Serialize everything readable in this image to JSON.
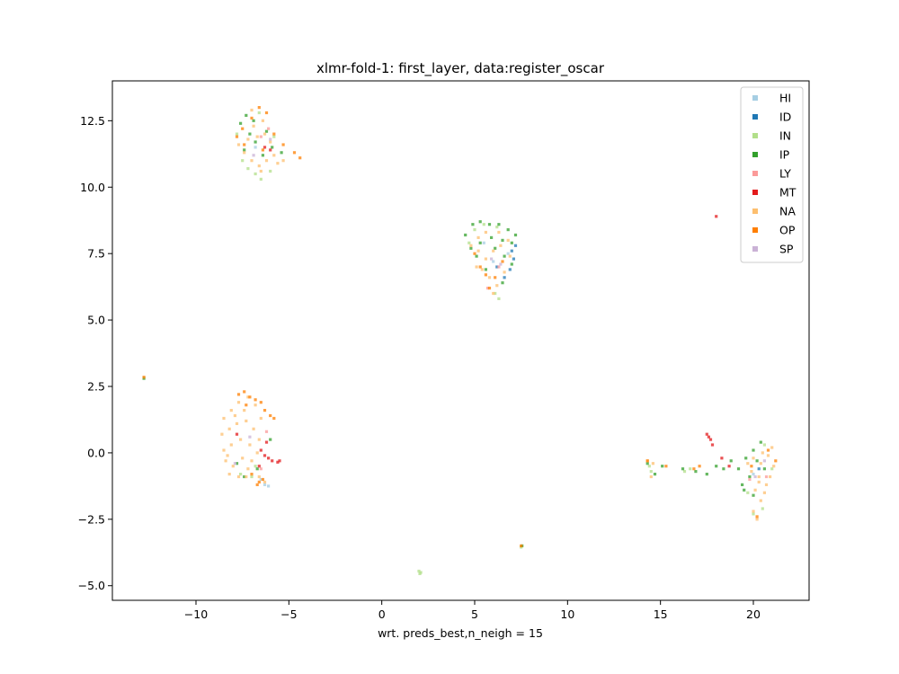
{
  "chart_data": {
    "type": "scatter",
    "title": "xlmr-fold-1: first_layer, data:register_oscar",
    "xlabel": "wrt. preds_best,n_neigh = 15",
    "ylabel": "",
    "xlim": [
      -14.5,
      23.0
    ],
    "ylim": [
      -5.55,
      14.0
    ],
    "xticks": [
      -10,
      -5,
      0,
      5,
      10,
      15,
      20
    ],
    "xtick_labels": [
      "−10",
      "−5",
      "0",
      "5",
      "10",
      "15",
      "20"
    ],
    "yticks": [
      -5.0,
      -2.5,
      0.0,
      2.5,
      5.0,
      7.5,
      10.0,
      12.5
    ],
    "ytick_labels": [
      "−5.0",
      "−2.5",
      "0.0",
      "2.5",
      "5.0",
      "7.5",
      "10.0",
      "12.5"
    ],
    "grid": false,
    "legend_position": "upper right",
    "series": [
      {
        "name": "HI",
        "color": "#a6cee3",
        "points": [
          [
            -6.3,
            -1.2
          ],
          [
            -6.1,
            -1.25
          ],
          [
            -6.5,
            -1.0
          ],
          [
            5.5,
            7.9
          ],
          [
            6.0,
            7.2
          ],
          [
            6.8,
            7.5
          ],
          [
            -6.8,
            11.5
          ],
          [
            20.0,
            -0.8
          ]
        ]
      },
      {
        "name": "ID",
        "color": "#1f78b4",
        "points": [
          [
            7.0,
            7.6
          ],
          [
            7.1,
            7.3
          ],
          [
            6.9,
            6.9
          ],
          [
            7.2,
            7.8
          ],
          [
            6.6,
            6.6
          ],
          [
            6.2,
            7.0
          ],
          [
            20.3,
            -0.6
          ]
        ]
      },
      {
        "name": "IN",
        "color": "#b2df8a",
        "points": [
          [
            -6.8,
            10.5
          ],
          [
            -6.5,
            10.3
          ],
          [
            -7.2,
            10.7
          ],
          [
            -6.0,
            10.6
          ],
          [
            -7.5,
            11.0
          ],
          [
            -5.8,
            11.9
          ],
          [
            -7.8,
            12.0
          ],
          [
            -6.6,
            12.8
          ],
          [
            5.0,
            8.4
          ],
          [
            5.5,
            8.6
          ],
          [
            6.2,
            8.5
          ],
          [
            4.7,
            7.9
          ],
          [
            6.1,
            6.0
          ],
          [
            6.3,
            5.8
          ],
          [
            -7.6,
            -0.8
          ],
          [
            -7.0,
            -0.9
          ],
          [
            -6.8,
            -0.5
          ],
          [
            2.0,
            -4.45
          ],
          [
            2.1,
            -4.5
          ],
          [
            2.05,
            -4.55
          ],
          [
            14.5,
            -0.7
          ],
          [
            14.4,
            -0.5
          ],
          [
            16.3,
            -0.7
          ],
          [
            16.6,
            -0.6
          ],
          [
            19.7,
            -1.5
          ],
          [
            20.0,
            -2.3
          ],
          [
            20.5,
            -2.1
          ],
          [
            20.6,
            0.3
          ],
          [
            21.0,
            -0.6
          ],
          [
            7.5,
            -3.55
          ]
        ]
      },
      {
        "name": "IP",
        "color": "#33a02c",
        "points": [
          [
            -7.6,
            12.4
          ],
          [
            -7.3,
            12.7
          ],
          [
            -6.9,
            12.5
          ],
          [
            -6.2,
            12.1
          ],
          [
            -5.9,
            11.5
          ],
          [
            -7.4,
            11.4
          ],
          [
            -6.4,
            11.2
          ],
          [
            -5.4,
            11.3
          ],
          [
            -6.8,
            11.7
          ],
          [
            -7.1,
            12.0
          ],
          [
            4.5,
            8.2
          ],
          [
            4.9,
            8.6
          ],
          [
            5.3,
            8.7
          ],
          [
            5.8,
            8.6
          ],
          [
            6.3,
            8.6
          ],
          [
            6.8,
            8.4
          ],
          [
            7.2,
            8.2
          ],
          [
            4.8,
            7.7
          ],
          [
            5.3,
            7.9
          ],
          [
            5.9,
            8.1
          ],
          [
            6.5,
            8.0
          ],
          [
            7.0,
            7.9
          ],
          [
            5.1,
            7.4
          ],
          [
            6.1,
            7.7
          ],
          [
            6.6,
            7.4
          ],
          [
            5.6,
            6.9
          ],
          [
            6.5,
            6.4
          ],
          [
            7.0,
            7.1
          ],
          [
            -7.8,
            -0.4
          ],
          [
            -6.7,
            -0.6
          ],
          [
            -6.0,
            0.5
          ],
          [
            -7.4,
            -0.9
          ],
          [
            14.3,
            -0.4
          ],
          [
            14.7,
            -0.8
          ],
          [
            15.1,
            -0.5
          ],
          [
            16.2,
            -0.6
          ],
          [
            16.9,
            -0.7
          ],
          [
            17.5,
            -0.8
          ],
          [
            18.0,
            -0.5
          ],
          [
            18.4,
            -0.6
          ],
          [
            18.8,
            -0.3
          ],
          [
            19.2,
            -0.6
          ],
          [
            19.4,
            -1.2
          ],
          [
            19.6,
            -0.2
          ],
          [
            19.8,
            -0.9
          ],
          [
            20.0,
            0.1
          ],
          [
            20.2,
            -0.3
          ],
          [
            20.4,
            0.4
          ],
          [
            19.5,
            -1.4
          ],
          [
            20.0,
            -1.6
          ],
          [
            20.6,
            -0.6
          ],
          [
            7.55,
            -3.5
          ],
          [
            -12.8,
            2.8
          ]
        ]
      },
      {
        "name": "LY",
        "color": "#fb9a99",
        "points": [
          [
            -6.1,
            12.2
          ],
          [
            -6.5,
            11.9
          ],
          [
            5.7,
            6.2
          ],
          [
            6.3,
            7.0
          ],
          [
            -6.2,
            0.8
          ],
          [
            -6.5,
            -0.6
          ],
          [
            19.8,
            -1.0
          ],
          [
            20.7,
            -0.9
          ]
        ]
      },
      {
        "name": "MT",
        "color": "#e31a1c",
        "points": [
          [
            -6.3,
            11.5
          ],
          [
            -6.0,
            11.4
          ],
          [
            -6.5,
            0.1
          ],
          [
            -6.2,
            0.4
          ],
          [
            -6.1,
            -0.2
          ],
          [
            -5.9,
            -0.3
          ],
          [
            -5.6,
            -0.35
          ],
          [
            -5.5,
            -0.3
          ],
          [
            -6.3,
            -0.1
          ],
          [
            -6.6,
            -0.5
          ],
          [
            -7.8,
            0.7
          ],
          [
            17.5,
            0.7
          ],
          [
            17.7,
            0.5
          ],
          [
            17.6,
            0.6
          ],
          [
            17.8,
            0.3
          ],
          [
            18.3,
            -0.2
          ],
          [
            18.7,
            -0.5
          ],
          [
            18.0,
            8.9
          ]
        ]
      },
      {
        "name": "NA",
        "color": "#fdbf6f",
        "points": [
          [
            -7.7,
            11.6
          ],
          [
            -7.4,
            11.3
          ],
          [
            -7.0,
            11.0
          ],
          [
            -6.6,
            10.8
          ],
          [
            -6.2,
            11.0
          ],
          [
            -5.8,
            11.2
          ],
          [
            -5.3,
            11.0
          ],
          [
            -6.9,
            12.3
          ],
          [
            -6.4,
            12.5
          ],
          [
            -6.7,
            11.9
          ],
          [
            -7.2,
            11.8
          ],
          [
            -6.0,
            11.7
          ],
          [
            -7.0,
            12.9
          ],
          [
            -6.5,
            10.6
          ],
          [
            -5.6,
            10.9
          ],
          [
            -6.3,
            12.0
          ],
          [
            4.8,
            7.8
          ],
          [
            5.2,
            7.6
          ],
          [
            5.6,
            7.3
          ],
          [
            6.0,
            7.6
          ],
          [
            6.4,
            7.8
          ],
          [
            6.8,
            8.0
          ],
          [
            5.4,
            6.9
          ],
          [
            5.8,
            6.6
          ],
          [
            6.2,
            6.3
          ],
          [
            6.6,
            6.8
          ],
          [
            6.0,
            6.0
          ],
          [
            5.2,
            8.1
          ],
          [
            5.6,
            8.3
          ],
          [
            6.3,
            8.3
          ],
          [
            5.1,
            7.0
          ],
          [
            6.9,
            7.4
          ],
          [
            -8.5,
            1.3
          ],
          [
            -8.1,
            1.6
          ],
          [
            -7.7,
            1.9
          ],
          [
            -7.2,
            2.1
          ],
          [
            -6.8,
            1.8
          ],
          [
            -6.5,
            1.3
          ],
          [
            -8.6,
            0.7
          ],
          [
            -8.2,
            0.9
          ],
          [
            -7.8,
            1.1
          ],
          [
            -7.3,
            1.2
          ],
          [
            -6.9,
            0.9
          ],
          [
            -6.6,
            0.5
          ],
          [
            -8.5,
            0.1
          ],
          [
            -8.1,
            0.3
          ],
          [
            -7.6,
            0.5
          ],
          [
            -7.1,
            0.3
          ],
          [
            -6.7,
            0.0
          ],
          [
            -8.4,
            -0.3
          ],
          [
            -8.0,
            -0.5
          ],
          [
            -7.5,
            -0.2
          ],
          [
            -7.0,
            -0.3
          ],
          [
            -8.2,
            -0.8
          ],
          [
            -7.7,
            -0.9
          ],
          [
            -7.2,
            -0.6
          ],
          [
            -6.6,
            -0.9
          ],
          [
            -6.3,
            -1.1
          ],
          [
            -7.9,
            1.4
          ],
          [
            -7.4,
            1.6
          ],
          [
            -8.3,
            -0.1
          ],
          [
            -7.3,
            -0.9
          ],
          [
            14.3,
            -0.3
          ],
          [
            14.5,
            -0.9
          ],
          [
            14.6,
            -0.4
          ],
          [
            20.0,
            -0.2
          ],
          [
            20.4,
            -0.4
          ],
          [
            20.8,
            -0.1
          ],
          [
            21.0,
            0.2
          ],
          [
            20.3,
            -0.9
          ],
          [
            20.7,
            -1.2
          ],
          [
            20.1,
            -1.4
          ],
          [
            20.4,
            -1.8
          ],
          [
            20.0,
            -2.2
          ],
          [
            20.2,
            -2.5
          ],
          [
            20.6,
            -1.5
          ],
          [
            21.1,
            -0.5
          ],
          [
            19.7,
            -0.4
          ],
          [
            20.9,
            -0.9
          ],
          [
            20.5,
            0.0
          ],
          [
            19.9,
            -0.7
          ],
          [
            20.3,
            -1.1
          ]
        ]
      },
      {
        "name": "OP",
        "color": "#ff7f00",
        "points": [
          [
            -7.8,
            11.9
          ],
          [
            -7.5,
            12.2
          ],
          [
            -7.0,
            12.6
          ],
          [
            -6.6,
            13.0
          ],
          [
            -6.2,
            12.8
          ],
          [
            -5.8,
            12.0
          ],
          [
            -5.3,
            11.6
          ],
          [
            -4.7,
            11.3
          ],
          [
            -4.4,
            11.1
          ],
          [
            -7.4,
            11.6
          ],
          [
            -6.4,
            11.4
          ],
          [
            5.3,
            7.0
          ],
          [
            5.6,
            6.7
          ],
          [
            5.0,
            7.5
          ],
          [
            6.1,
            6.6
          ],
          [
            5.8,
            6.2
          ],
          [
            6.5,
            7.2
          ],
          [
            -7.7,
            2.2
          ],
          [
            -7.4,
            2.3
          ],
          [
            -7.1,
            2.1
          ],
          [
            -6.8,
            2.0
          ],
          [
            -6.5,
            1.9
          ],
          [
            -6.3,
            1.6
          ],
          [
            -6.0,
            1.4
          ],
          [
            -5.8,
            1.3
          ],
          [
            -7.3,
            1.8
          ],
          [
            -6.6,
            -1.1
          ],
          [
            -6.4,
            -1.0
          ],
          [
            -6.7,
            -1.2
          ],
          [
            -7.0,
            -0.8
          ],
          [
            15.3,
            -0.5
          ],
          [
            16.8,
            -0.6
          ],
          [
            17.1,
            -0.5
          ],
          [
            14.3,
            -0.3
          ],
          [
            20.8,
            0.1
          ],
          [
            20.2,
            -2.4
          ],
          [
            21.2,
            -0.3
          ],
          [
            19.9,
            -0.5
          ],
          [
            7.5,
            -3.5
          ],
          [
            -12.8,
            2.85
          ]
        ]
      },
      {
        "name": "SP",
        "color": "#cab2d6",
        "points": [
          [
            -6.9,
            11.2
          ],
          [
            -6.0,
            11.8
          ],
          [
            5.9,
            7.3
          ],
          [
            6.4,
            7.1
          ],
          [
            -7.1,
            0.6
          ],
          [
            -7.9,
            -0.4
          ],
          [
            20.1,
            -0.9
          ],
          [
            20.6,
            -0.3
          ]
        ]
      }
    ]
  }
}
